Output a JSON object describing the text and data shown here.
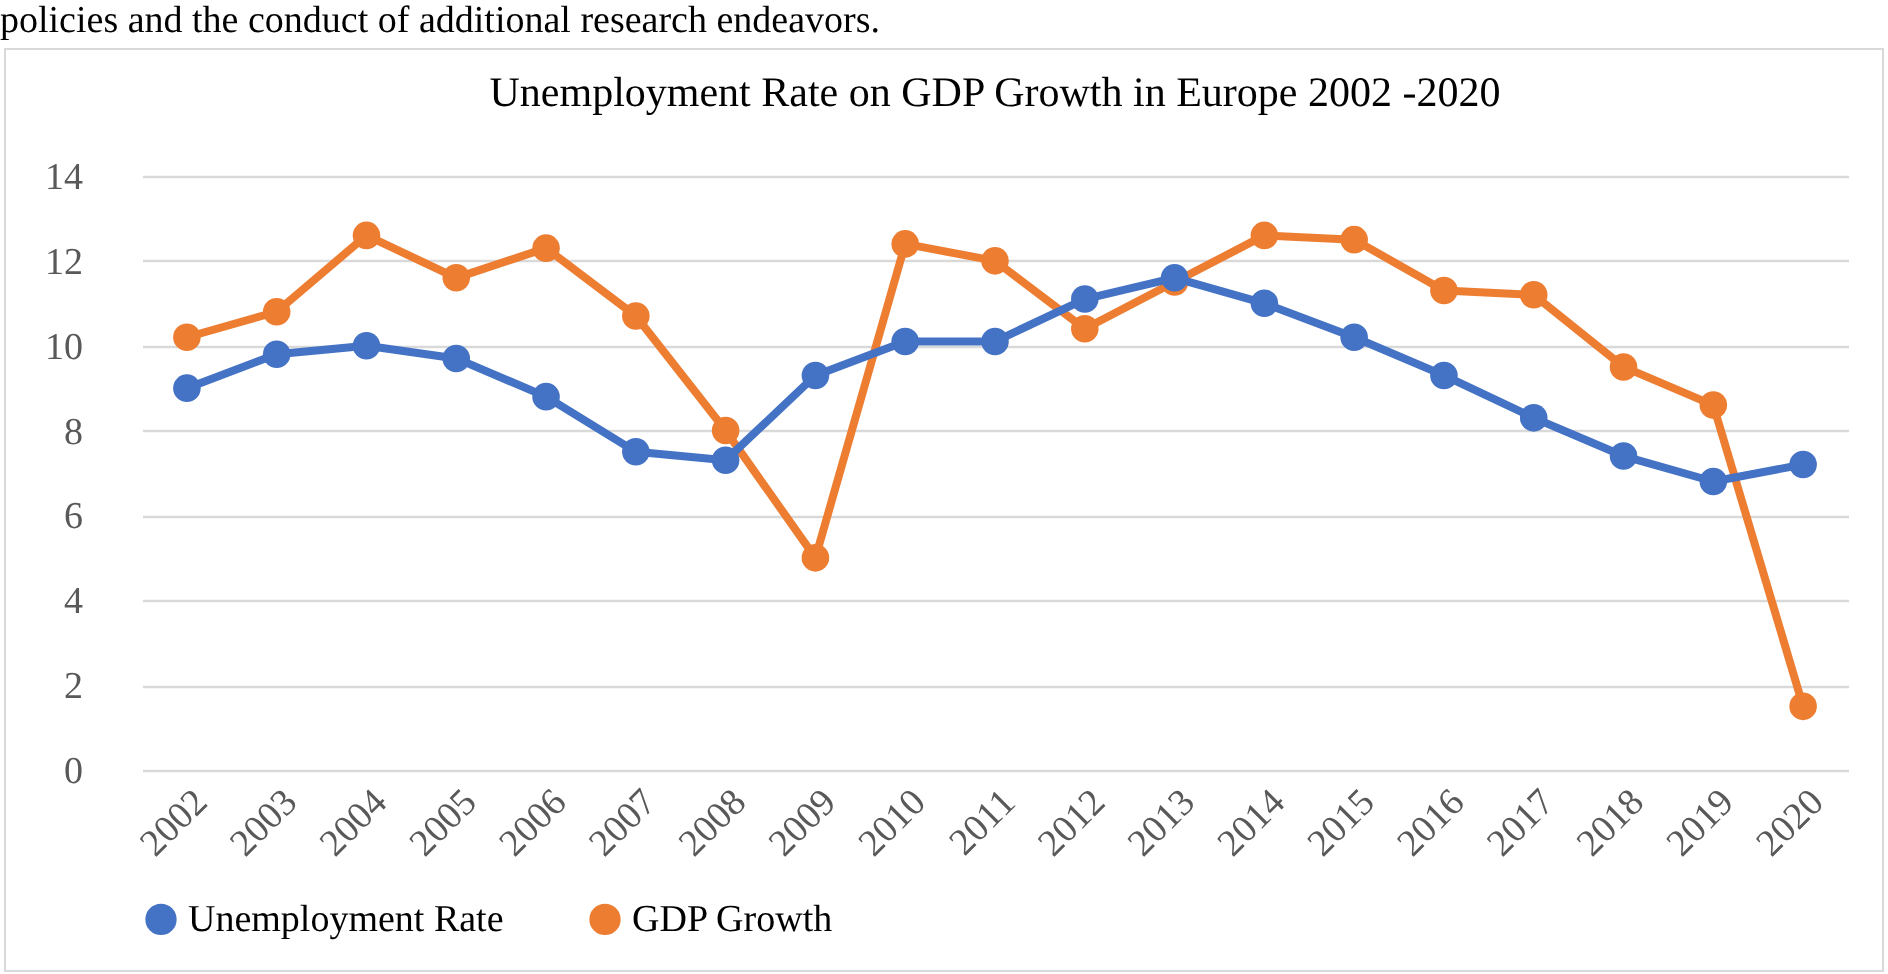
{
  "chart_data": {
    "type": "line",
    "title": "Unemployment Rate on GDP Growth in Europe 2002 -2020",
    "annotations": [
      "policies and the conduct of additional research endeavors."
    ],
    "categories": [
      "2002",
      "2003",
      "2004",
      "2005",
      "2006",
      "2007",
      "2008",
      "2009",
      "2010",
      "2011",
      "2012",
      "2013",
      "2014",
      "2015",
      "2016",
      "2017",
      "2018",
      "2019",
      "2020"
    ],
    "series": [
      {
        "name": "Unemployment Rate",
        "color": "#4472c4",
        "values": [
          9.0,
          9.8,
          10.0,
          9.7,
          8.8,
          7.5,
          7.3,
          9.3,
          10.1,
          10.1,
          11.1,
          11.6,
          11.0,
          10.2,
          9.3,
          8.3,
          7.4,
          6.8,
          7.2
        ]
      },
      {
        "name": "GDP Growth",
        "color": "#ed7d31",
        "values": [
          10.2,
          10.8,
          12.6,
          11.6,
          12.3,
          10.7,
          8.0,
          5.0,
          12.4,
          12.0,
          10.4,
          11.5,
          12.6,
          12.5,
          11.3,
          11.2,
          9.5,
          8.6,
          1.5
        ]
      }
    ],
    "ylim": [
      0,
      14
    ],
    "yticks": [
      0,
      2,
      4,
      6,
      8,
      10,
      12,
      14
    ],
    "grid": "y",
    "legend": "bottom",
    "marker": "circle",
    "line_style": "solid"
  }
}
